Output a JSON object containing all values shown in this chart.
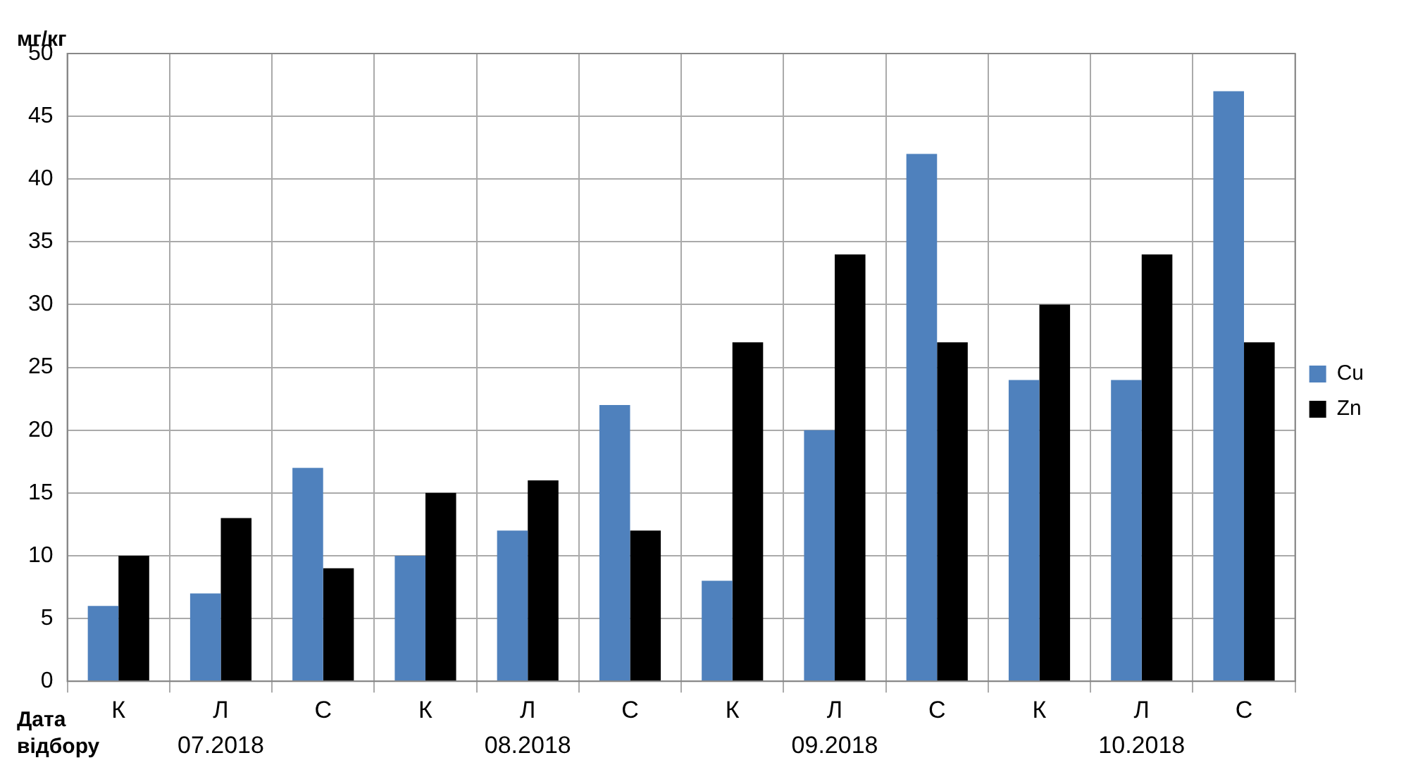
{
  "chart_data": {
    "type": "bar",
    "ylabel": "мг/кг",
    "xlabel": "Дата відбору",
    "categories": [
      "К",
      "Л",
      "С",
      "К",
      "Л",
      "С",
      "К",
      "Л",
      "С",
      "К",
      "Л",
      "С"
    ],
    "series": [
      {
        "name": "Cu",
        "color": "#4f81bd",
        "values": [
          6,
          7,
          17,
          10,
          12,
          22,
          8,
          20,
          42,
          24,
          24,
          47
        ]
      },
      {
        "name": "Zn",
        "color": "#000000",
        "values": [
          10,
          13,
          9,
          15,
          16,
          12,
          27,
          34,
          27,
          30,
          34,
          27
        ]
      }
    ],
    "annotations": [
      "07.2018",
      "08.2018",
      "09.2018",
      "10.2018"
    ],
    "ylim": [
      0,
      50
    ],
    "yticks": [
      0,
      5,
      10,
      15,
      20,
      25,
      30,
      35,
      40,
      45,
      50
    ],
    "grid": true,
    "legend": "right"
  }
}
